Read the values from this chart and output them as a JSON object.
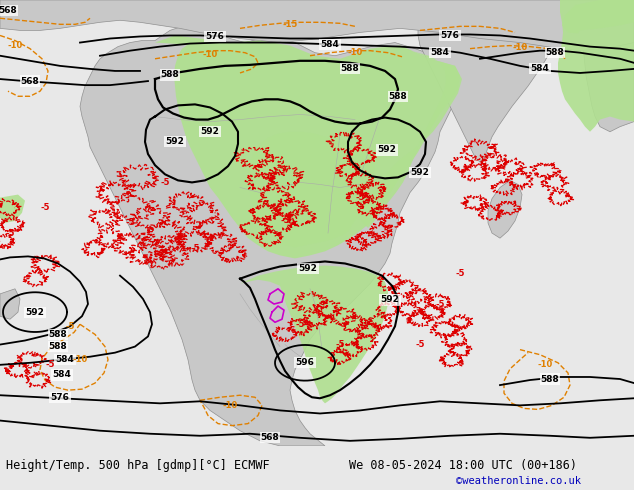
{
  "title_left": "Height/Temp. 500 hPa [gdmp][°C] ECMWF",
  "title_right": "We 08-05-2024 18:00 UTC (00+186)",
  "watermark": "©weatheronline.co.uk",
  "bg_color": "#e8e8e8",
  "land_color": "#c8c8c8",
  "green_color": "#b0e090",
  "ocean_color": "#f5f5f5",
  "contour_color": "#000000",
  "temp_red_color": "#dd0000",
  "temp_orange_color": "#e08000",
  "temp_magenta_color": "#cc00cc",
  "figsize": [
    6.34,
    4.9
  ],
  "dpi": 100,
  "font_size_title": 8.5,
  "font_size_watermark": 7.5,
  "font_color_watermark": "#0000bb",
  "font_size_label": 6.5
}
